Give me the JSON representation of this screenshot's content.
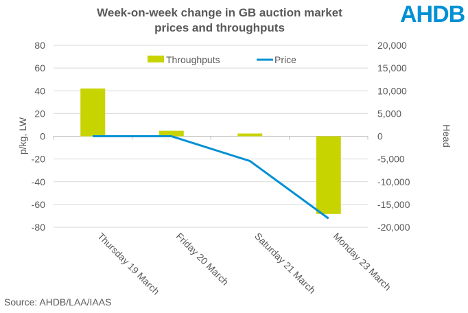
{
  "logo": "AHDB",
  "source": "Source: AHDB/LAA/IAAS",
  "chart_data": {
    "type": "bar+line",
    "title": [
      "Week-on-week change in GB auction market",
      "prices and throughputs"
    ],
    "categories": [
      "Thursday 19 March",
      "Friday 20 March",
      "Saturday 21 March",
      "Monday 23 March"
    ],
    "series": [
      {
        "name": "Throughputs",
        "type": "bar",
        "axis": "right",
        "color": "#c8d400",
        "values": [
          10500,
          1200,
          600,
          -17100
        ]
      },
      {
        "name": "Price",
        "type": "line",
        "axis": "left",
        "color": "#0090d4",
        "values": [
          0,
          0,
          -21.8,
          -72.3
        ]
      }
    ],
    "ylabel": "p/kg, LW",
    "ylim": [
      -80,
      80
    ],
    "yticks": [
      "80",
      "60",
      "40",
      "20",
      "0",
      "-20",
      "-40",
      "-60",
      "-80"
    ],
    "y2label": "Head",
    "y2lim": [
      -20000,
      20000
    ],
    "y2ticks": [
      "20,000",
      "15,000",
      "10,000",
      "5,000",
      "0",
      "-5,000",
      "-10,000",
      "-15,000",
      "-20,000"
    ],
    "legend": "top-center",
    "grid": true
  }
}
